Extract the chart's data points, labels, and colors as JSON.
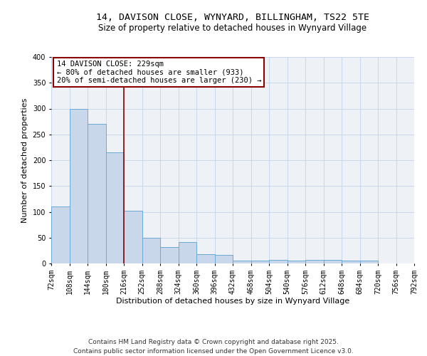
{
  "title_line1": "14, DAVISON CLOSE, WYNYARD, BILLINGHAM, TS22 5TE",
  "title_line2": "Size of property relative to detached houses in Wynyard Village",
  "xlabel": "Distribution of detached houses by size in Wynyard Village",
  "ylabel": "Number of detached properties",
  "bar_values": [
    110,
    300,
    270,
    215,
    102,
    50,
    32,
    41,
    18,
    17,
    6,
    5,
    7,
    5,
    7,
    7,
    6,
    6
  ],
  "bin_labels": [
    "72sqm",
    "108sqm",
    "144sqm",
    "180sqm",
    "216sqm",
    "252sqm",
    "288sqm",
    "324sqm",
    "360sqm",
    "396sqm",
    "432sqm",
    "468sqm",
    "504sqm",
    "540sqm",
    "576sqm",
    "612sqm",
    "648sqm",
    "684sqm",
    "720sqm",
    "756sqm",
    "792sqm"
  ],
  "bar_color": "#c8d8ea",
  "bar_edge_color": "#6aaad4",
  "vertical_line_x": 4,
  "vertical_line_color": "#8b0000",
  "annotation_line1": "14 DAVISON CLOSE: 229sqm",
  "annotation_line2": "← 80% of detached houses are smaller (933)",
  "annotation_line3": "20% of semi-detached houses are larger (230) →",
  "annotation_box_color": "#8b0000",
  "ylim": [
    0,
    400
  ],
  "yticks": [
    0,
    50,
    100,
    150,
    200,
    250,
    300,
    350,
    400
  ],
  "grid_color": "#c8d8ea",
  "background_color": "#eef2f7",
  "footer_line1": "Contains HM Land Registry data © Crown copyright and database right 2025.",
  "footer_line2": "Contains public sector information licensed under the Open Government Licence v3.0.",
  "title_fontsize": 9.5,
  "subtitle_fontsize": 8.5,
  "axis_label_fontsize": 8,
  "tick_fontsize": 7,
  "annotation_fontsize": 7.5,
  "footer_fontsize": 6.5
}
